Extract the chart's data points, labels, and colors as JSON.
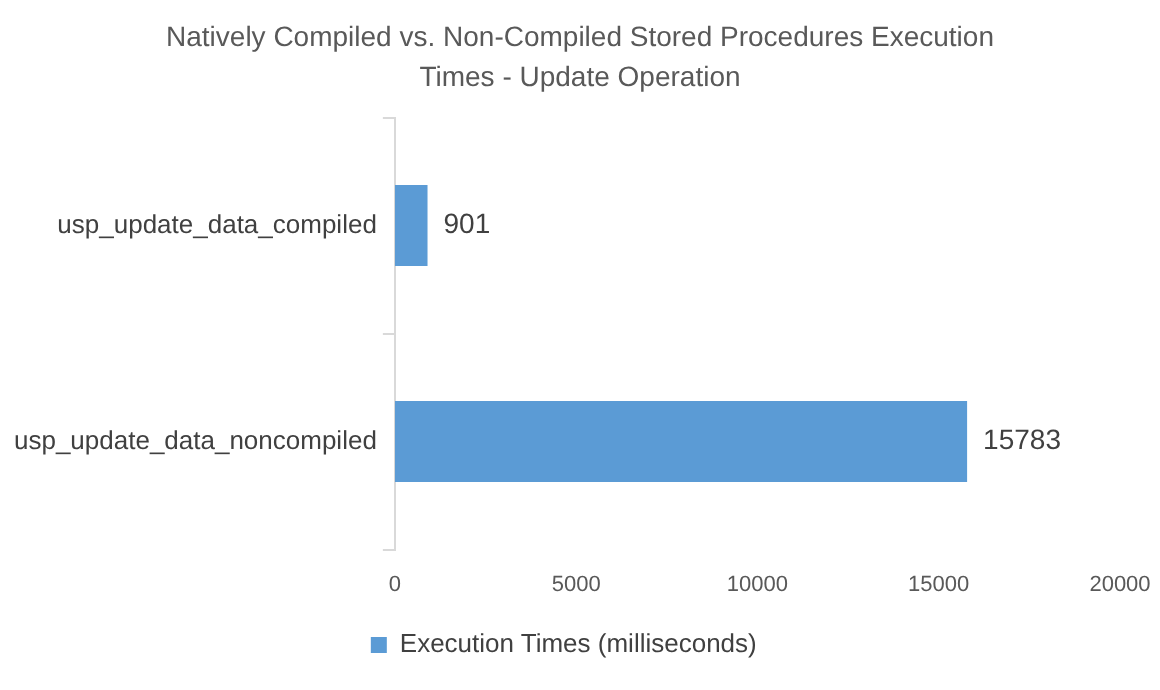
{
  "chart_data": {
    "type": "bar",
    "orientation": "horizontal",
    "title": "Natively Compiled vs. Non-Compiled Stored Procedures Execution Times - Update Operation",
    "categories": [
      "usp_update_data_compiled",
      "usp_update_data_noncompiled"
    ],
    "series": [
      {
        "name": "Execution Times (milliseconds)",
        "color": "#5b9bd5",
        "values": [
          901,
          15783
        ]
      }
    ],
    "xlim": [
      0,
      20000
    ],
    "xticks": [
      0,
      5000,
      10000,
      15000,
      20000
    ],
    "grid": false,
    "legend": "bottom",
    "data_labels": true
  }
}
